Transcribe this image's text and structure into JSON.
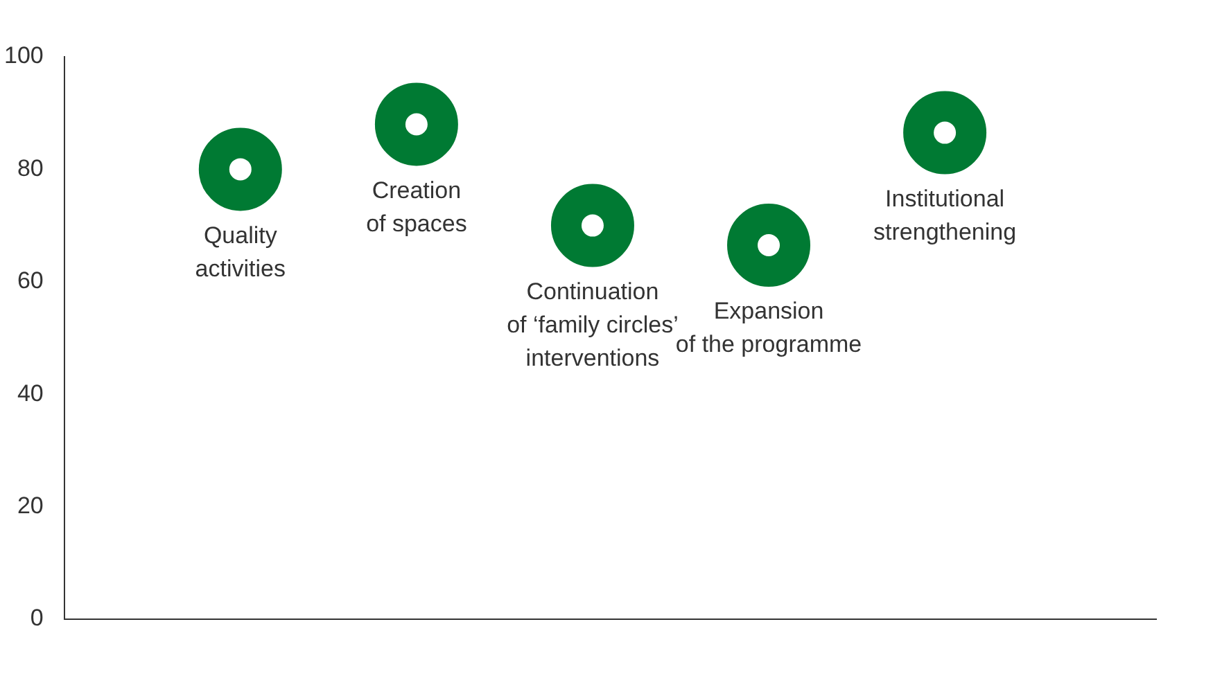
{
  "chart_data": {
    "type": "scatter",
    "categories": [
      "Quality\nactivities",
      "Creation\nof spaces",
      "Continuation\nof ‘family circles’\ninterventions",
      "Expansion\nof the programme",
      "Institutional\nstrengthening"
    ],
    "series": [
      {
        "color": "#007a33",
        "values": [
          80,
          88,
          70,
          66.5,
          86.5
        ]
      }
    ],
    "ylim": [
      0,
      100
    ],
    "yticks": [
      0,
      20,
      40,
      60,
      80,
      100
    ],
    "grid": false,
    "legend": false,
    "marker": "circle",
    "tick_labels": "y"
  }
}
